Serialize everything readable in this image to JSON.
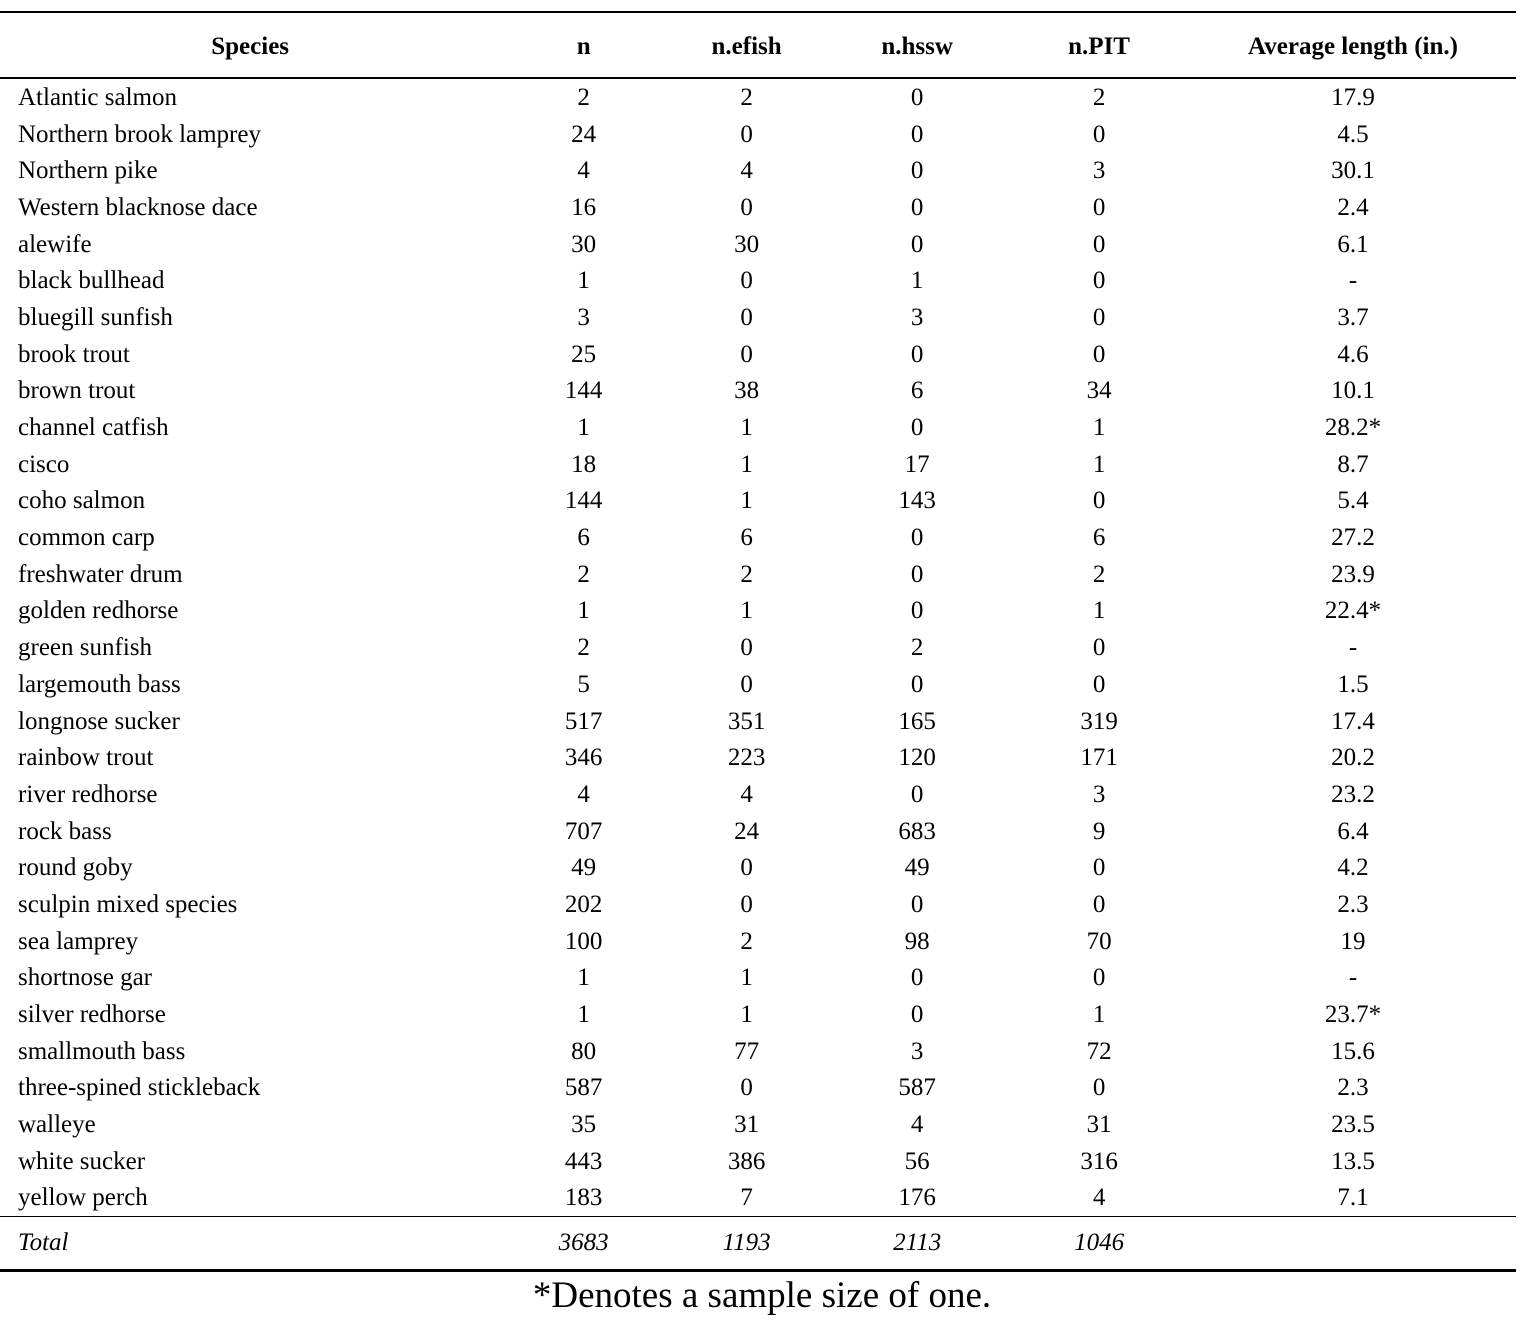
{
  "table": {
    "columns": [
      {
        "label": "Species"
      },
      {
        "label": "n"
      },
      {
        "label": "n.efish"
      },
      {
        "label": "n.hssw"
      },
      {
        "label": "n.PIT"
      },
      {
        "label": "Average length (in.)"
      }
    ],
    "rows": [
      [
        "Atlantic salmon",
        "2",
        "2",
        "0",
        "2",
        "17.9"
      ],
      [
        "Northern brook lamprey",
        "24",
        "0",
        "0",
        "0",
        "4.5"
      ],
      [
        "Northern pike",
        "4",
        "4",
        "0",
        "3",
        "30.1"
      ],
      [
        "Western blacknose dace",
        "16",
        "0",
        "0",
        "0",
        "2.4"
      ],
      [
        "alewife",
        "30",
        "30",
        "0",
        "0",
        "6.1"
      ],
      [
        "black bullhead",
        "1",
        "0",
        "1",
        "0",
        "-"
      ],
      [
        "bluegill sunfish",
        "3",
        "0",
        "3",
        "0",
        "3.7"
      ],
      [
        "brook trout",
        "25",
        "0",
        "0",
        "0",
        "4.6"
      ],
      [
        "brown trout",
        "144",
        "38",
        "6",
        "34",
        "10.1"
      ],
      [
        "channel catfish",
        "1",
        "1",
        "0",
        "1",
        "28.2*"
      ],
      [
        "cisco",
        "18",
        "1",
        "17",
        "1",
        "8.7"
      ],
      [
        "coho salmon",
        "144",
        "1",
        "143",
        "0",
        "5.4"
      ],
      [
        "common carp",
        "6",
        "6",
        "0",
        "6",
        "27.2"
      ],
      [
        "freshwater drum",
        "2",
        "2",
        "0",
        "2",
        "23.9"
      ],
      [
        "golden redhorse",
        "1",
        "1",
        "0",
        "1",
        "22.4*"
      ],
      [
        "green sunfish",
        "2",
        "0",
        "2",
        "0",
        "-"
      ],
      [
        "largemouth bass",
        "5",
        "0",
        "0",
        "0",
        "1.5"
      ],
      [
        "longnose sucker",
        "517",
        "351",
        "165",
        "319",
        "17.4"
      ],
      [
        "rainbow trout",
        "346",
        "223",
        "120",
        "171",
        "20.2"
      ],
      [
        "river redhorse",
        "4",
        "4",
        "0",
        "3",
        "23.2"
      ],
      [
        "rock bass",
        "707",
        "24",
        "683",
        "9",
        "6.4"
      ],
      [
        "round goby",
        "49",
        "0",
        "49",
        "0",
        "4.2"
      ],
      [
        "sculpin mixed species",
        "202",
        "0",
        "0",
        "0",
        "2.3"
      ],
      [
        "sea lamprey",
        "100",
        "2",
        "98",
        "70",
        "19"
      ],
      [
        "shortnose gar",
        "1",
        "1",
        "0",
        "0",
        "-"
      ],
      [
        "silver redhorse",
        "1",
        "1",
        "0",
        "1",
        "23.7*"
      ],
      [
        "smallmouth bass",
        "80",
        "77",
        "3",
        "72",
        "15.6"
      ],
      [
        "three-spined stickleback",
        "587",
        "0",
        "587",
        "0",
        "2.3"
      ],
      [
        "walleye",
        "35",
        "31",
        "4",
        "31",
        "23.5"
      ],
      [
        "white sucker",
        "443",
        "386",
        "56",
        "316",
        "13.5"
      ],
      [
        "yellow perch",
        "183",
        "7",
        "176",
        "4",
        "7.1"
      ]
    ],
    "total": {
      "label": "Total",
      "values": [
        "3683",
        "1193",
        "2113",
        "1046",
        ""
      ]
    }
  },
  "footnote": "*Denotes a sample size of one.",
  "colors": {
    "text": "#000000",
    "background": "#ffffff",
    "rule": "#000000"
  }
}
